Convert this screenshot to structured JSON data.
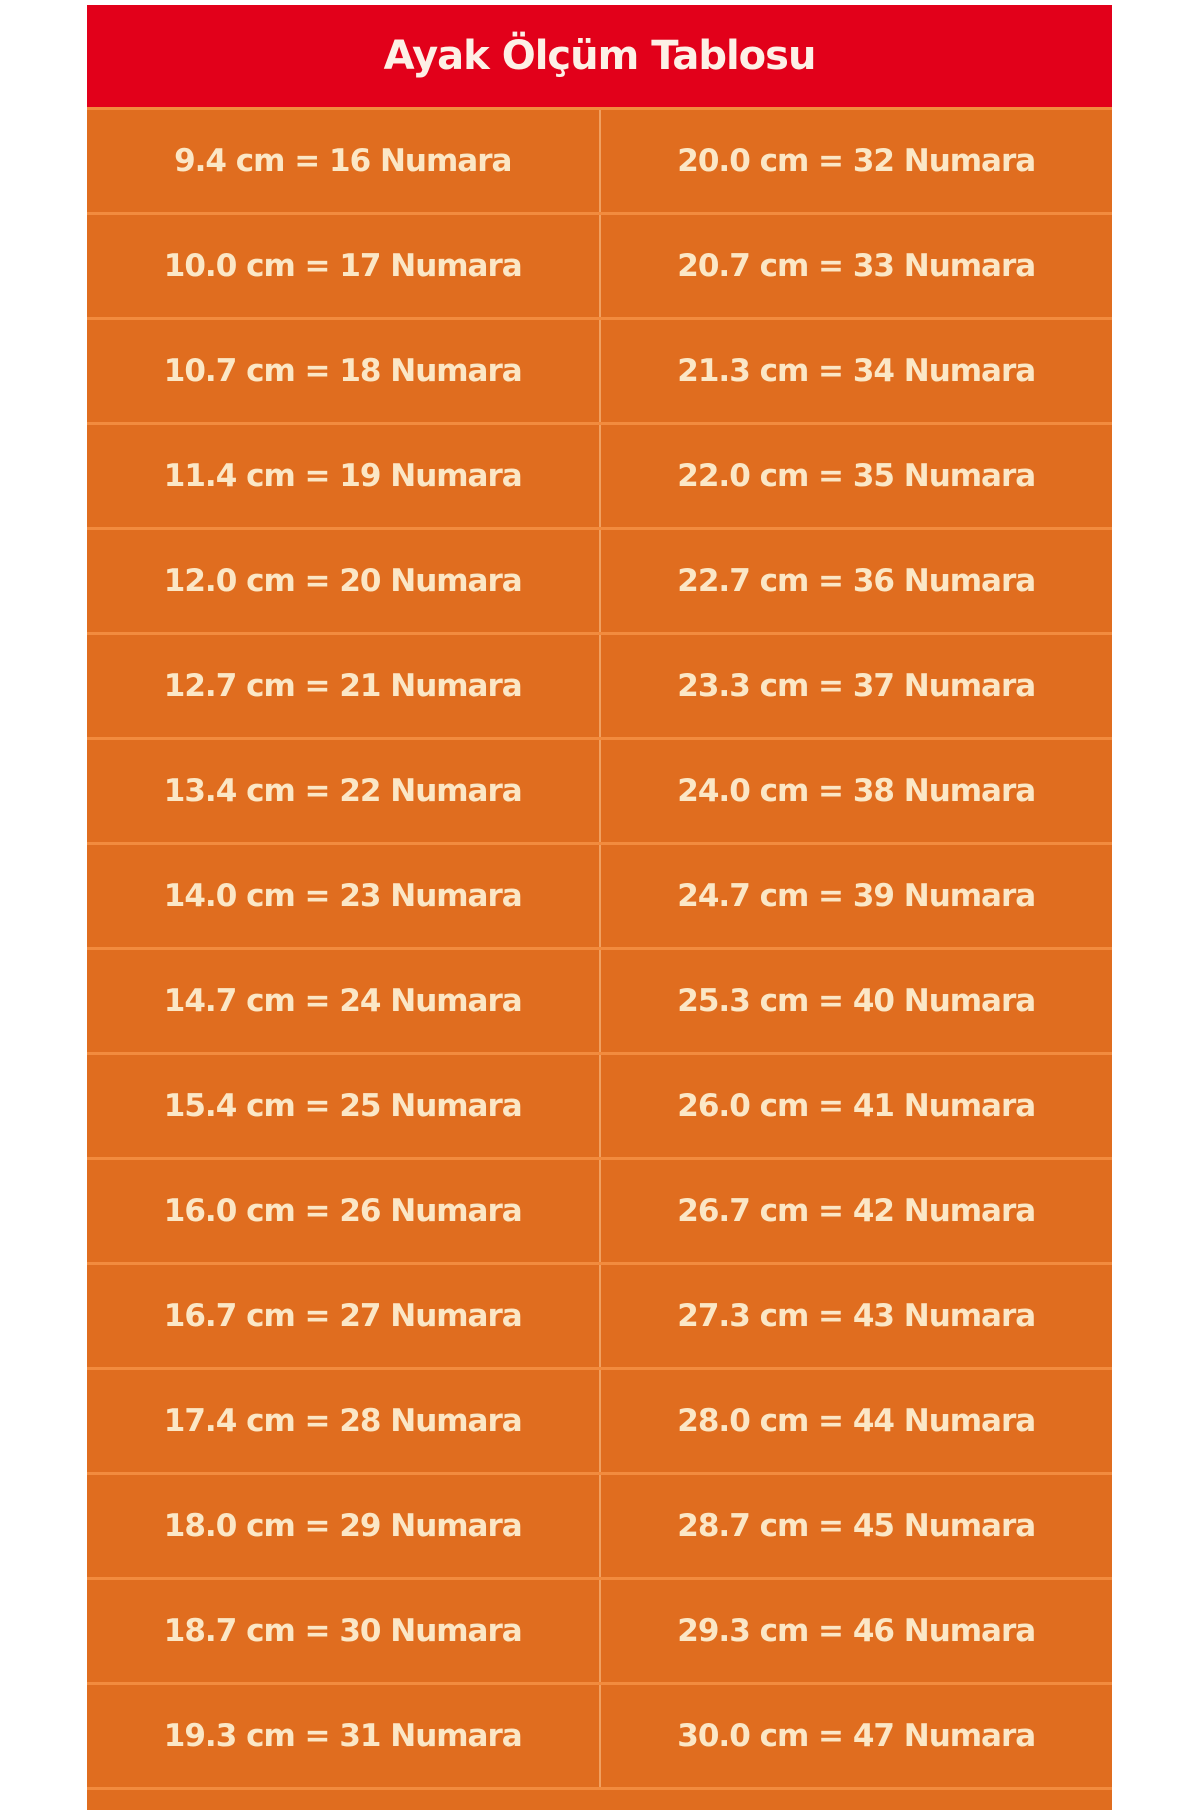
{
  "title": "Ayak Ölçüm Tablosu",
  "rows": [
    [
      "9.4 cm = 16 Numara",
      "20.0 cm = 32 Numara"
    ],
    [
      "10.0 cm = 17 Numara",
      "20.7 cm = 33 Numara"
    ],
    [
      "10.7 cm = 18 Numara",
      "21.3 cm = 34 Numara"
    ],
    [
      "11.4 cm = 19 Numara",
      "22.0 cm = 35 Numara"
    ],
    [
      "12.0 cm = 20 Numara",
      "22.7 cm = 36 Numara"
    ],
    [
      "12.7 cm = 21 Numara",
      "23.3 cm = 37 Numara"
    ],
    [
      "13.4 cm = 22 Numara",
      "24.0 cm = 38 Numara"
    ],
    [
      "14.0 cm = 23 Numara",
      "24.7 cm = 39 Numara"
    ],
    [
      "14.7 cm = 24 Numara",
      "25.3 cm = 40 Numara"
    ],
    [
      "15.4 cm = 25 Numara",
      "26.0 cm = 41 Numara"
    ],
    [
      "16.0 cm = 26 Numara",
      "26.7 cm = 42 Numara"
    ],
    [
      "16.7 cm = 27 Numara",
      "27.3 cm = 43 Numara"
    ],
    [
      "17.4 cm = 28 Numara",
      "28.0 cm = 44 Numara"
    ],
    [
      "18.0 cm = 29 Numara",
      "28.7 cm = 45 Numara"
    ],
    [
      "18.7 cm = 30 Numara",
      "29.3 cm = 46 Numara"
    ],
    [
      "19.3 cm = 31 Numara",
      "30.0 cm = 47 Numara"
    ]
  ],
  "colors": {
    "header": "#e2001a",
    "rows": "#e06d1f",
    "text": "#fbe7c6"
  }
}
